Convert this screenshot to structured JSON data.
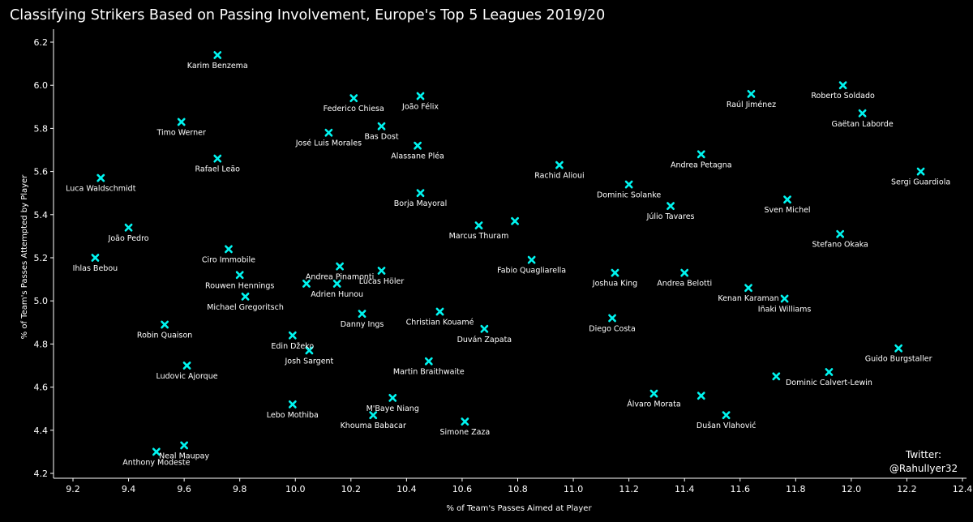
{
  "title": "Classifying Strikers Based on Passing Involvement, Europe's Top 5 Leagues 2019/20",
  "credit": {
    "line1": "Twitter:",
    "line2": "@RahulIyer32"
  },
  "colors": {
    "background": "#000000",
    "marker": "#00f5f0",
    "text": "#ffffff",
    "axis": "#ffffff"
  },
  "chart_data": {
    "type": "scatter",
    "title": "Classifying Strikers Based on Passing Involvement, Europe's Top 5 Leagues 2019/20",
    "xlabel": "% of Team's Passes Aimed at Player",
    "ylabel": "% of Team's Passes Attempted by Player",
    "xlim": [
      9.2,
      12.4
    ],
    "ylim": [
      4.2,
      6.2
    ],
    "xticks": [
      "9.2",
      "9.4",
      "9.6",
      "9.8",
      "10.0",
      "10.2",
      "10.4",
      "10.6",
      "10.8",
      "11.0",
      "11.2",
      "11.4",
      "11.6",
      "11.8",
      "12.0",
      "12.2",
      "12.4"
    ],
    "yticks": [
      "4.2",
      "4.4",
      "4.6",
      "4.8",
      "5.0",
      "5.2",
      "5.4",
      "5.6",
      "5.8",
      "6.0",
      "6.2"
    ],
    "grid": false,
    "marker": "x",
    "points": [
      {
        "label": "Karim Benzema",
        "x": 9.72,
        "y": 6.14
      },
      {
        "label": "Federico Chiesa",
        "x": 10.21,
        "y": 5.94
      },
      {
        "label": "João Félix",
        "x": 10.45,
        "y": 5.95
      },
      {
        "label": "Roberto Soldado",
        "x": 11.97,
        "y": 6.0
      },
      {
        "label": "Raúl Jiménez",
        "x": 11.64,
        "y": 5.96
      },
      {
        "label": "Gaëtan Laborde",
        "x": 12.04,
        "y": 5.87
      },
      {
        "label": "Timo Werner",
        "x": 9.59,
        "y": 5.83
      },
      {
        "label": "José Luis Morales",
        "x": 10.12,
        "y": 5.78
      },
      {
        "label": "Bas Dost",
        "x": 10.31,
        "y": 5.81
      },
      {
        "label": "Alassane Pléa",
        "x": 10.44,
        "y": 5.72
      },
      {
        "label": "Rafael Leão",
        "x": 9.72,
        "y": 5.66
      },
      {
        "label": "Andrea Petagna",
        "x": 11.46,
        "y": 5.68
      },
      {
        "label": "Rachid Alioui",
        "x": 10.95,
        "y": 5.63
      },
      {
        "label": "Luca Waldschmidt",
        "x": 9.3,
        "y": 5.57
      },
      {
        "label": "Sergi Guardiola",
        "x": 12.25,
        "y": 5.6
      },
      {
        "label": "Dominic Solanke",
        "x": 11.2,
        "y": 5.54
      },
      {
        "label": "Borja Mayoral",
        "x": 10.45,
        "y": 5.5
      },
      {
        "label": "Sven Michel",
        "x": 11.77,
        "y": 5.47
      },
      {
        "label": "Júlio Tavares",
        "x": 11.35,
        "y": 5.44
      },
      {
        "label": "",
        "x": 10.79,
        "y": 5.37
      },
      {
        "label": "Marcus Thuram",
        "x": 10.66,
        "y": 5.35
      },
      {
        "label": "João Pedro",
        "x": 9.4,
        "y": 5.34
      },
      {
        "label": "Stefano Okaka",
        "x": 11.96,
        "y": 5.31
      },
      {
        "label": "Ciro Immobile",
        "x": 9.76,
        "y": 5.24
      },
      {
        "label": "Ihlas Bebou",
        "x": 9.28,
        "y": 5.2
      },
      {
        "label": "Fabio Quagliarella",
        "x": 10.85,
        "y": 5.19
      },
      {
        "label": "Andrea Pinamonti",
        "x": 10.16,
        "y": 5.16
      },
      {
        "label": "Lucas Höler",
        "x": 10.31,
        "y": 5.14
      },
      {
        "label": "Joshua King",
        "x": 11.15,
        "y": 5.13
      },
      {
        "label": "Andrea Belotti",
        "x": 11.4,
        "y": 5.13
      },
      {
        "label": "Rouwen Hennings",
        "x": 9.8,
        "y": 5.12
      },
      {
        "label": "",
        "x": 10.04,
        "y": 5.08
      },
      {
        "label": "Adrien Hunou",
        "x": 10.15,
        "y": 5.08
      },
      {
        "label": "Kenan Karaman",
        "x": 11.63,
        "y": 5.06
      },
      {
        "label": "Michael Gregoritsch",
        "x": 9.82,
        "y": 5.02
      },
      {
        "label": "Iñaki Williams",
        "x": 11.76,
        "y": 5.01
      },
      {
        "label": "Danny Ings",
        "x": 10.24,
        "y": 4.94
      },
      {
        "label": "Christian Kouamé",
        "x": 10.52,
        "y": 4.95
      },
      {
        "label": "Diego Costa",
        "x": 11.14,
        "y": 4.92
      },
      {
        "label": "Robin Quaison",
        "x": 9.53,
        "y": 4.89
      },
      {
        "label": "Duván Zapata",
        "x": 10.68,
        "y": 4.87
      },
      {
        "label": "Edin Džeko",
        "x": 9.99,
        "y": 4.84
      },
      {
        "label": "Guido Burgstaller",
        "x": 12.17,
        "y": 4.78
      },
      {
        "label": "Josh Sargent",
        "x": 10.05,
        "y": 4.77
      },
      {
        "label": "Martin Braithwaite",
        "x": 10.48,
        "y": 4.72
      },
      {
        "label": "Ludovic Ajorque",
        "x": 9.61,
        "y": 4.7
      },
      {
        "label": "Dominic Calvert-Lewin",
        "x": 11.92,
        "y": 4.67
      },
      {
        "label": "",
        "x": 11.73,
        "y": 4.65
      },
      {
        "label": "Álvaro Morata",
        "x": 11.29,
        "y": 4.57
      },
      {
        "label": "",
        "x": 11.46,
        "y": 4.56
      },
      {
        "label": "M'Baye Niang",
        "x": 10.35,
        "y": 4.55
      },
      {
        "label": "Lebo Mothiba",
        "x": 9.99,
        "y": 4.52
      },
      {
        "label": "Khouma Babacar",
        "x": 10.28,
        "y": 4.47
      },
      {
        "label": "Dušan Vlahović",
        "x": 11.55,
        "y": 4.47
      },
      {
        "label": "Simone Zaza",
        "x": 10.61,
        "y": 4.44
      },
      {
        "label": "Neal Maupay",
        "x": 9.6,
        "y": 4.33
      },
      {
        "label": "Anthony Modeste",
        "x": 9.5,
        "y": 4.3
      }
    ]
  }
}
